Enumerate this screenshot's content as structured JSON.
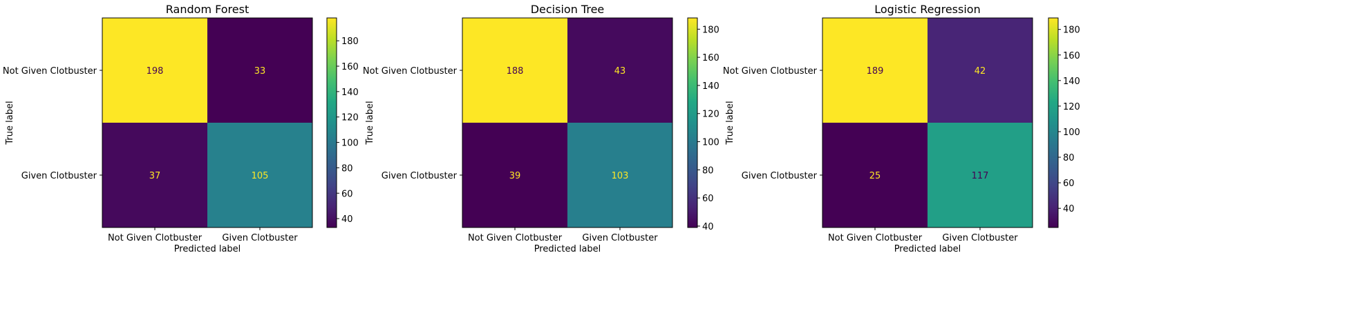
{
  "chart_data": [
    {
      "type": "heatmap",
      "title": "Random Forest",
      "xlabel": "Predicted label",
      "ylabel": "True label",
      "x_categories": [
        "Not Given Clotbuster",
        "Given Clotbuster"
      ],
      "y_categories": [
        "Not Given Clotbuster",
        "Given Clotbuster"
      ],
      "matrix": [
        [
          198,
          33
        ],
        [
          37,
          105
        ]
      ],
      "colormap": "viridis",
      "colorbar": {
        "range": [
          33,
          198
        ],
        "ticks": [
          40,
          60,
          80,
          100,
          120,
          140,
          160,
          180
        ]
      }
    },
    {
      "type": "heatmap",
      "title": "Decision Tree",
      "xlabel": "Predicted label",
      "ylabel": "True label",
      "x_categories": [
        "Not Given Clotbuster",
        "Given Clotbuster"
      ],
      "y_categories": [
        "Not Given Clotbuster",
        "Given Clotbuster"
      ],
      "matrix": [
        [
          188,
          43
        ],
        [
          39,
          103
        ]
      ],
      "colormap": "viridis",
      "colorbar": {
        "range": [
          39,
          188
        ],
        "ticks": [
          40,
          60,
          80,
          100,
          120,
          140,
          160,
          180
        ]
      }
    },
    {
      "type": "heatmap",
      "title": "Logistic Regression",
      "xlabel": "Predicted label",
      "ylabel": "True label",
      "x_categories": [
        "Not Given Clotbuster",
        "Given Clotbuster"
      ],
      "y_categories": [
        "Not Given Clotbuster",
        "Given Clotbuster"
      ],
      "matrix": [
        [
          189,
          42
        ],
        [
          25,
          117
        ]
      ],
      "colormap": "viridis",
      "colorbar": {
        "range": [
          25,
          189
        ],
        "ticks": [
          40,
          60,
          80,
          100,
          120,
          140,
          160,
          180
        ]
      }
    }
  ]
}
